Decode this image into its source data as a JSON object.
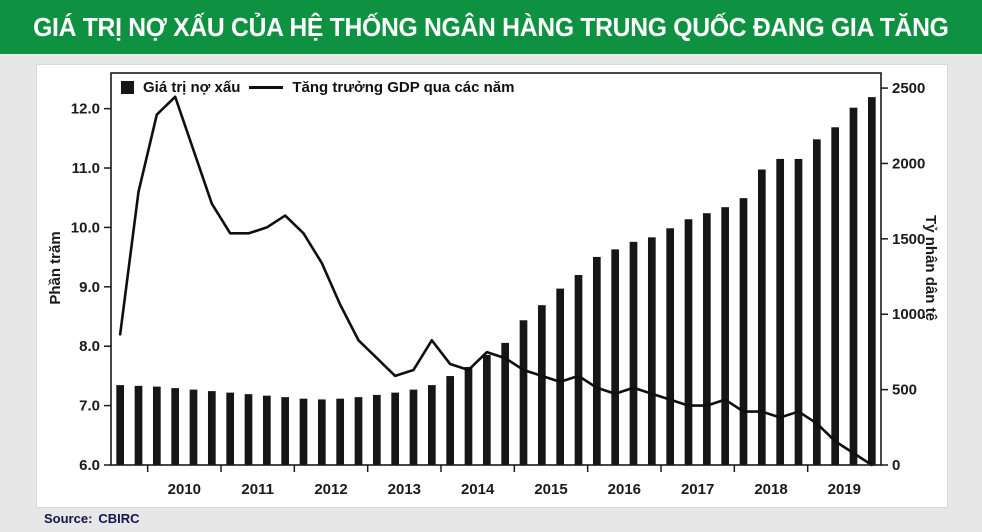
{
  "header": {
    "title": "GIÁ TRỊ NỢ XẤU CỦA HỆ THỐNG NGÂN HÀNG TRUNG QUỐC ĐANG GIA TĂNG"
  },
  "source": {
    "label": "Source:",
    "value": "CBIRC"
  },
  "colors": {
    "header_bg": "#0e9141",
    "page_bg": "#e7e7e7",
    "panel_bg": "#ffffff",
    "bar": "#161616",
    "line": "#0f0f0f",
    "axis": "#1a1a1a",
    "source_text": "#13134f"
  },
  "chart_data": {
    "type": "combo-bar-line",
    "title": "GIÁ TRỊ NỢ XẤU CỦA HỆ THỐNG NGÂN HÀNG TRUNG QUỐC ĐANG GIA TĂNG",
    "x_unit": "quarterly",
    "years": [
      "2010",
      "2011",
      "2012",
      "2013",
      "2014",
      "2015",
      "2016",
      "2017",
      "2018",
      "2019"
    ],
    "year_first_index": 2,
    "bar_series": {
      "name": "Giá trị nợ xấu",
      "axis": "right",
      "values": [
        530,
        525,
        520,
        510,
        500,
        490,
        480,
        470,
        460,
        450,
        440,
        435,
        440,
        450,
        465,
        480,
        500,
        530,
        590,
        650,
        730,
        810,
        960,
        1060,
        1170,
        1260,
        1380,
        1430,
        1480,
        1510,
        1570,
        1630,
        1670,
        1710,
        1770,
        1960,
        2030,
        2030,
        2160,
        2240,
        2370,
        2440
      ]
    },
    "line_series": {
      "name": "Tăng trưởng GDP qua các năm",
      "axis": "left",
      "values": [
        8.2,
        10.6,
        11.9,
        12.2,
        11.3,
        10.4,
        9.9,
        9.9,
        10.0,
        10.2,
        9.9,
        9.4,
        8.7,
        8.1,
        7.8,
        7.5,
        7.6,
        8.1,
        7.7,
        7.6,
        7.9,
        7.8,
        7.6,
        7.5,
        7.4,
        7.5,
        7.3,
        7.2,
        7.3,
        7.2,
        7.1,
        7.0,
        7.0,
        7.1,
        6.9,
        6.9,
        6.8,
        6.9,
        6.7,
        6.4,
        6.2,
        6.0
      ]
    },
    "left_axis": {
      "label": "Phần trăm",
      "min": 6.0,
      "max": 12.6,
      "ticks": [
        6,
        7,
        8,
        9,
        10,
        11,
        12
      ],
      "tick_labels": [
        "6.0",
        "7.0",
        "8.0",
        "9.0",
        "10.0",
        "11.0",
        "12.0"
      ]
    },
    "right_axis": {
      "label": "Tỷ nhân dân tệ",
      "min": 0,
      "max": 2600,
      "ticks": [
        0,
        500,
        1000,
        1500,
        2000,
        2500
      ],
      "tick_labels": [
        "0",
        "500",
        "1000",
        "1500",
        "2000",
        "2500"
      ]
    },
    "legend_position": "top-left",
    "grid": "off"
  }
}
